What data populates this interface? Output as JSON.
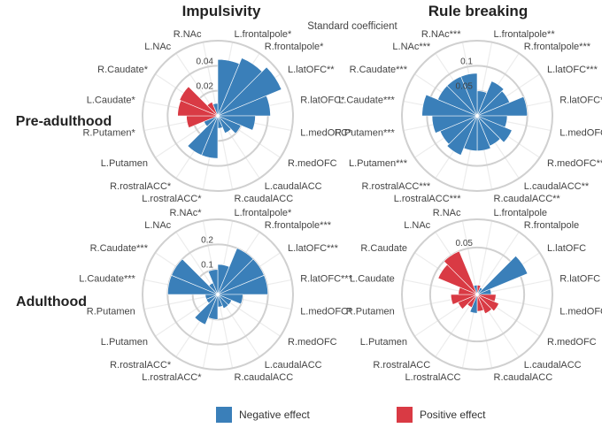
{
  "header": {
    "subtitle": "Standard coefficient",
    "col_titles": [
      "Impulsivity",
      "Rule breaking"
    ],
    "row_titles": [
      "Pre-adulthood",
      "Adulthood"
    ]
  },
  "colors": {
    "negative": "#3a7fb9",
    "positive": "#d93a44",
    "grid": "#d0d0d0"
  },
  "legend": [
    {
      "label": "Negative effect",
      "color": "#3a7fb9"
    },
    {
      "label": "Positive effect",
      "color": "#d93a44"
    }
  ],
  "chart_data": [
    {
      "type": "polar-bar",
      "title": "Impulsivity",
      "row": "Pre-adulthood",
      "rmax": 0.06,
      "ticks": [
        0.02,
        0.04
      ],
      "tick_labels": [
        "0.02",
        "0.04"
      ],
      "labels": [
        "L.frontalpole*",
        "R.frontalpole*",
        "L.latOFC**",
        "R.latOFC*",
        "L.medOFC*",
        "R.medOFC",
        "L.caudalACC",
        "R.caudalACC",
        "L.rostralACC*",
        "R.rostralACC*",
        "L.Putamen",
        "R.Putamen*",
        "L.Caudate*",
        "R.Caudate*",
        "L.NAc",
        "R.NAc"
      ],
      "values": [
        0.045,
        0.05,
        0.055,
        0.042,
        0.03,
        0.02,
        0.015,
        0.01,
        0.034,
        0.034,
        0.012,
        0.025,
        0.032,
        0.033,
        0.012,
        0.01
      ],
      "signs": [
        "negative",
        "negative",
        "negative",
        "negative",
        "negative",
        "negative",
        "negative",
        "negative",
        "negative",
        "negative",
        "negative",
        "positive",
        "positive",
        "positive",
        "positive",
        "negative"
      ]
    },
    {
      "type": "polar-bar",
      "title": "Rule breaking",
      "row": "Pre-adulthood",
      "rmax": 0.15,
      "ticks": [
        0.05,
        0.1
      ],
      "tick_labels": [
        "0.05",
        "0.1"
      ],
      "labels": [
        "L.frontalpole**",
        "R.frontalpole***",
        "L.latOFC***",
        "R.latOFC***",
        "L.medOFC*",
        "R.medOFC***",
        "L.caudalACC**",
        "R.caudalACC**",
        "L.rostralACC***",
        "R.rostralACC***",
        "L.Putamen***",
        "R.Putamen***",
        "L.Caudate***",
        "R.Caudate***",
        "L.NAc***",
        "R.NAc***"
      ],
      "values": [
        0.05,
        0.075,
        0.07,
        0.1,
        0.06,
        0.075,
        0.065,
        0.07,
        0.07,
        0.085,
        0.08,
        0.09,
        0.11,
        0.085,
        0.085,
        0.085
      ],
      "signs": [
        "negative",
        "negative",
        "negative",
        "negative",
        "negative",
        "negative",
        "negative",
        "negative",
        "negative",
        "negative",
        "negative",
        "negative",
        "negative",
        "negative",
        "negative",
        "negative"
      ]
    },
    {
      "type": "polar-bar",
      "title": "Impulsivity",
      "row": "Adulthood",
      "rmax": 0.3,
      "ticks": [
        0.1,
        0.2
      ],
      "tick_labels": [
        "0.1",
        "0.2"
      ],
      "labels": [
        "L.frontalpole*",
        "R.frontalpole***",
        "L.latOFC***",
        "R.latOFC***",
        "L.medOFC*",
        "R.medOFC",
        "L.caudalACC",
        "R.caudalACC",
        "L.rostralACC*",
        "R.rostralACC*",
        "L.Putamen",
        "R.Putamen",
        "L.Caudate***",
        "R.Caudate***",
        "L.NAc",
        "R.NAc*"
      ],
      "values": [
        0.12,
        0.2,
        0.2,
        0.2,
        0.1,
        0.06,
        0.06,
        0.05,
        0.1,
        0.13,
        0.05,
        0.05,
        0.2,
        0.2,
        0.05,
        0.1
      ],
      "signs": [
        "negative",
        "negative",
        "negative",
        "negative",
        "negative",
        "negative",
        "negative",
        "negative",
        "negative",
        "negative",
        "negative",
        "negative",
        "negative",
        "negative",
        "negative",
        "negative"
      ]
    },
    {
      "type": "polar-bar",
      "title": "Rule breaking",
      "row": "Adulthood",
      "rmax": 0.08,
      "ticks": [
        0.05
      ],
      "tick_labels": [
        "0.05"
      ],
      "labels": [
        "L.frontalpole",
        "R.frontalpole",
        "L.latOFC",
        "R.latOFC",
        "L.medOFC",
        "R.medOFC",
        "L.caudalACC",
        "R.caudalACC",
        "L.rostralACC",
        "R.rostralACC",
        "L.Putamen",
        "R.Putamen",
        "L.Caudate",
        "R.Caudate",
        "L.NAc",
        "R.NAc"
      ],
      "values": [
        0.01,
        0.008,
        0.058,
        0.015,
        0.02,
        0.025,
        0.022,
        0.018,
        0.02,
        0.015,
        0.022,
        0.028,
        0.02,
        0.045,
        0.05,
        0.01
      ],
      "signs": [
        "positive",
        "negative",
        "negative",
        "negative",
        "positive",
        "positive",
        "positive",
        "positive",
        "negative",
        "positive",
        "positive",
        "positive",
        "positive",
        "positive",
        "positive",
        "negative"
      ]
    }
  ]
}
